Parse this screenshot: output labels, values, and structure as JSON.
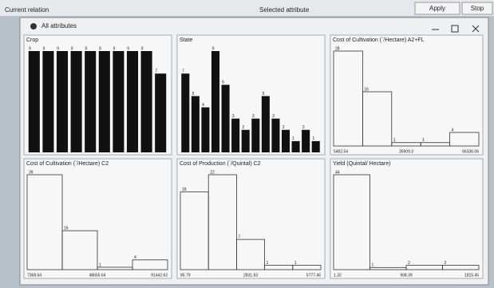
{
  "header": {
    "current_relation": "Current relation",
    "selected_attribute": "Selected attribute",
    "buttons": [
      "Apply",
      "Stop"
    ]
  },
  "window": {
    "title": "All attributes"
  },
  "panels": [
    {
      "title": "Crop",
      "style": "filled",
      "values": [
        9,
        9,
        9,
        9,
        9,
        9,
        9,
        9,
        9,
        7
      ],
      "axis_labels": []
    },
    {
      "title": "State",
      "style": "filled",
      "values": [
        7,
        5,
        4,
        9,
        6,
        3,
        2,
        3,
        5,
        3,
        2,
        1,
        2,
        1
      ],
      "axis_labels": []
    },
    {
      "title": "Cost of Cultivation (`/Hectare) A2+FL",
      "style": "outline",
      "values": [
        28,
        16,
        1,
        1,
        4
      ],
      "axis_labels": [
        "5482.54",
        "35909.3",
        "66336.06"
      ]
    },
    {
      "title": "Cost of Cultivation (`/Hectare) C2",
      "style": "outline",
      "values": [
        39,
        16,
        1,
        4
      ],
      "axis_labels": [
        "7368.64",
        "48655.64",
        "91442.63"
      ]
    },
    {
      "title": "Cost of Production (`/Quintal) C2",
      "style": "outline",
      "values": [
        18,
        22,
        7,
        1,
        1
      ],
      "axis_labels": [
        "85.79",
        "2831.63",
        "5777.46"
      ]
    },
    {
      "title": "Yield (Quintal/ Hectare)",
      "style": "outline",
      "values": [
        44,
        1,
        2,
        2
      ],
      "axis_labels": [
        "1.32",
        "908.39",
        "1815.45"
      ]
    }
  ]
}
